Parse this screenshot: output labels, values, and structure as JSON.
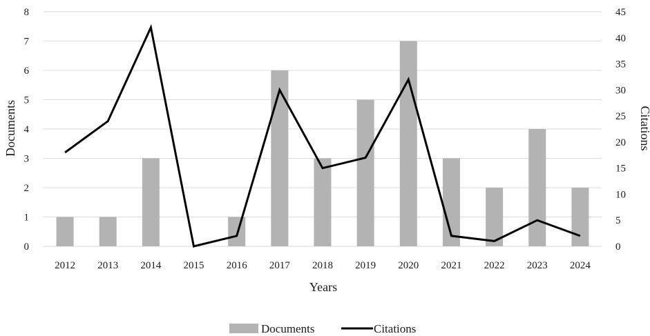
{
  "chart_data": {
    "type": "bar",
    "categories": [
      "2012",
      "2013",
      "2014",
      "2015",
      "2016",
      "2017",
      "2018",
      "2019",
      "2020",
      "2021",
      "2022",
      "2023",
      "2024"
    ],
    "series": [
      {
        "name": "Documents",
        "type": "bar",
        "axis": "left",
        "color": "#b3b3b3",
        "values": [
          1,
          1,
          3,
          0,
          1,
          6,
          3,
          5,
          7,
          3,
          2,
          4,
          2
        ]
      },
      {
        "name": "Citations",
        "type": "line",
        "axis": "right",
        "color": "#000000",
        "values": [
          18,
          24,
          42,
          0,
          2,
          30,
          15,
          17,
          32,
          2,
          1,
          5,
          2
        ]
      }
    ],
    "xlabel": "Years",
    "ylabel": "Documents",
    "y2label": "Citations",
    "ylim": [
      0,
      8
    ],
    "y2lim": [
      0,
      45
    ],
    "yticks": [
      0,
      1,
      2,
      3,
      4,
      5,
      6,
      7,
      8
    ],
    "y2ticks": [
      0,
      5,
      10,
      15,
      20,
      25,
      30,
      35,
      40,
      45
    ],
    "grid": true,
    "legend_position": "bottom"
  }
}
